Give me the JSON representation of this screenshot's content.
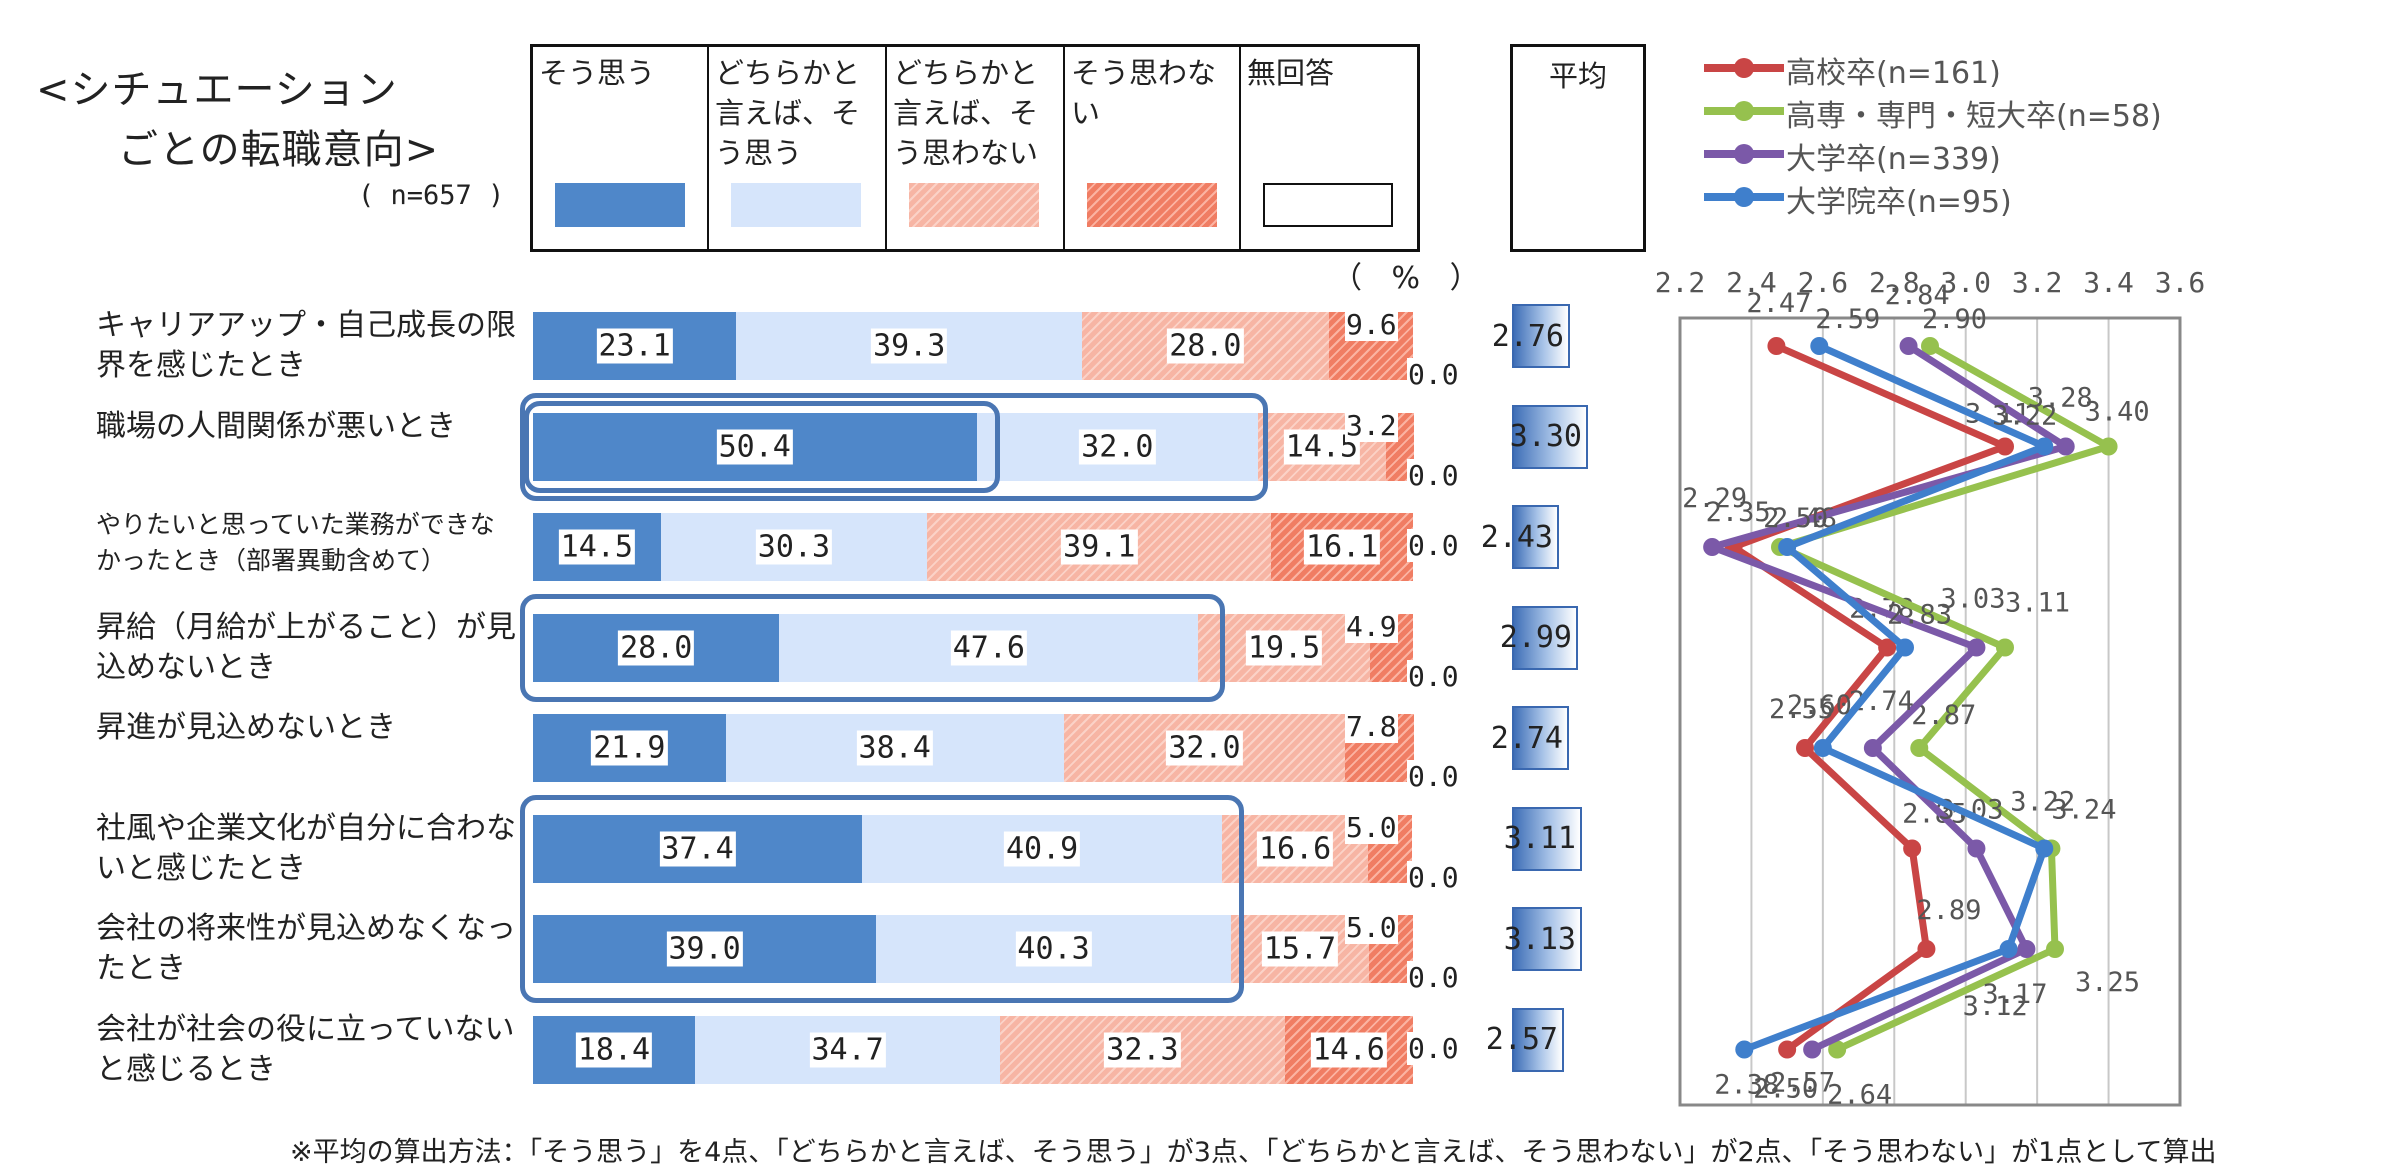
{
  "title": "<シチュエーション\n　　ごとの転職意向>",
  "sample_note": "( n=657 )",
  "percent_unit": "（ % ）",
  "avg_header": "平均",
  "legend": [
    {
      "label": "そう思う",
      "color": "#4f87c9",
      "pattern": "solid"
    },
    {
      "label": "どちらかと言えば、そう思う",
      "color": "#d6e5fb",
      "pattern": "solid"
    },
    {
      "label": "どちらかと言えば、そう思わない",
      "color": "#f7b5a4",
      "pattern": "light-hatch"
    },
    {
      "label": "そう思わない",
      "color": "#f07d63",
      "pattern": "hatch"
    },
    {
      "label": "無回答",
      "color": "#ffffff",
      "pattern": "outline"
    }
  ],
  "rows": [
    {
      "label": "キャリアアップ・自己成長の限界を感じたとき",
      "values": [
        "23.1",
        "39.3",
        "28.0",
        "9.6",
        "0.0"
      ],
      "avg": "2.76"
    },
    {
      "label": "職場の人間関係が悪いとき",
      "values": [
        "50.4",
        "32.0",
        "14.5",
        "3.2",
        "0.0"
      ],
      "avg": "3.30"
    },
    {
      "label": "やりたいと思っていた業務ができなかったとき（部署異動含めて）",
      "values": [
        "14.5",
        "30.3",
        "39.1",
        "16.1",
        "0.0"
      ],
      "avg": "2.43"
    },
    {
      "label": "昇給（月給が上がること）が見込めないとき",
      "values": [
        "28.0",
        "47.6",
        "19.5",
        "4.9",
        "0.0"
      ],
      "avg": "2.99"
    },
    {
      "label": "昇進が見込めないとき",
      "values": [
        "21.9",
        "38.4",
        "32.0",
        "7.8",
        "0.0"
      ],
      "avg": "2.74"
    },
    {
      "label": "社風や企業文化が自分に合わないと感じたとき",
      "values": [
        "37.4",
        "40.9",
        "16.6",
        "5.0",
        "0.0"
      ],
      "avg": "3.11"
    },
    {
      "label": "会社の将来性が見込めなくなったとき",
      "values": [
        "39.0",
        "40.3",
        "15.7",
        "5.0",
        "0.0"
      ],
      "avg": "3.13"
    },
    {
      "label": "会社が社会の役に立っていないと感じるとき",
      "values": [
        "18.4",
        "34.7",
        "32.3",
        "14.6",
        "0.0"
      ],
      "avg": "2.57"
    }
  ],
  "highlighted_rows": [
    1,
    3,
    5,
    6
  ],
  "line_chart": {
    "x_ticks": [
      "2.2",
      "2.4",
      "2.6",
      "2.8",
      "3.0",
      "3.2",
      "3.4",
      "3.6"
    ],
    "xlim": [
      2.2,
      3.6
    ],
    "series": [
      {
        "name": "高校卒(n=161)",
        "color": "#c94545",
        "values": [
          "2.47",
          "3.11",
          "2.35",
          "2.78",
          "2.55",
          "2.85",
          "2.89",
          "2.50"
        ]
      },
      {
        "name": "高専・専門・短大卒(n=58)",
        "color": "#96c14e",
        "values": [
          "2.90",
          "3.40",
          "2.48",
          "3.11",
          "2.87",
          "3.24",
          "3.25",
          "2.64"
        ]
      },
      {
        "name": "大学卒(n=339)",
        "color": "#7b59a8",
        "values": [
          "2.84",
          "3.28",
          "2.29",
          "3.03",
          "2.74",
          "3.03",
          "3.17",
          "2.57"
        ]
      },
      {
        "name": "大学院卒(n=95)",
        "color": "#3f7fcc",
        "values": [
          "2.59",
          "3.22",
          "2.50",
          "2.83",
          "2.60",
          "3.22",
          "3.12",
          "2.38"
        ]
      }
    ]
  },
  "chart_data": [
    {
      "type": "bar",
      "title": "<シチュエーションごとの転職意向>",
      "unit": "%",
      "categories": [
        "キャリアアップ・自己成長の限界を感じたとき",
        "職場の人間関係が悪いとき",
        "やりたいと思っていた業務ができなかったとき（部署異動含めて）",
        "昇給（月給が上がること）が見込めないとき",
        "昇進が見込めないとき",
        "社風や企業文化が自分に合わないと感じたとき",
        "会社の将来性が見込めなくなったとき",
        "会社が社会の役に立っていないと感じるとき"
      ],
      "series": [
        {
          "name": "そう思う",
          "values": [
            23.1,
            50.4,
            14.5,
            28.0,
            21.9,
            37.4,
            39.0,
            18.4
          ]
        },
        {
          "name": "どちらかと言えば、そう思う",
          "values": [
            39.3,
            32.0,
            30.3,
            47.6,
            38.4,
            40.9,
            40.3,
            34.7
          ]
        },
        {
          "name": "どちらかと言えば、そう思わない",
          "values": [
            28.0,
            14.5,
            39.1,
            19.5,
            32.0,
            16.6,
            15.7,
            32.3
          ]
        },
        {
          "name": "そう思わない",
          "values": [
            9.6,
            3.2,
            16.1,
            4.9,
            7.8,
            5.0,
            5.0,
            14.6
          ]
        },
        {
          "name": "無回答",
          "values": [
            0.0,
            0.0,
            0.0,
            0.0,
            0.0,
            0.0,
            0.0,
            0.0
          ]
        }
      ],
      "stacked": true,
      "orientation": "horizontal",
      "averages": [
        2.76,
        3.3,
        2.43,
        2.99,
        2.74,
        3.11,
        3.13,
        2.57
      ]
    },
    {
      "type": "line",
      "orientation": "vertical-categories",
      "xlim": [
        2.2,
        3.6
      ],
      "grid": true,
      "legend": "top-right",
      "series": [
        {
          "name": "高校卒(n=161)",
          "values": [
            2.47,
            3.11,
            2.35,
            2.78,
            2.55,
            2.85,
            2.89,
            2.5
          ]
        },
        {
          "name": "高専・専門・短大卒(n=58)",
          "values": [
            2.9,
            3.4,
            2.48,
            3.11,
            2.87,
            3.24,
            3.25,
            2.64
          ]
        },
        {
          "name": "大学卒(n=339)",
          "values": [
            2.84,
            3.28,
            2.29,
            3.03,
            2.74,
            3.03,
            3.17,
            2.57
          ]
        },
        {
          "name": "大学院卒(n=95)",
          "values": [
            2.59,
            3.22,
            2.5,
            2.83,
            2.6,
            3.22,
            3.12,
            2.38
          ]
        }
      ]
    }
  ],
  "footnote": "※平均の算出方法：「そう思う」を4点、「どちらかと言えば、そう思う」が3点、「どちらかと言えば、そう思わない」が2点、「そう思わない」が1点として算出"
}
